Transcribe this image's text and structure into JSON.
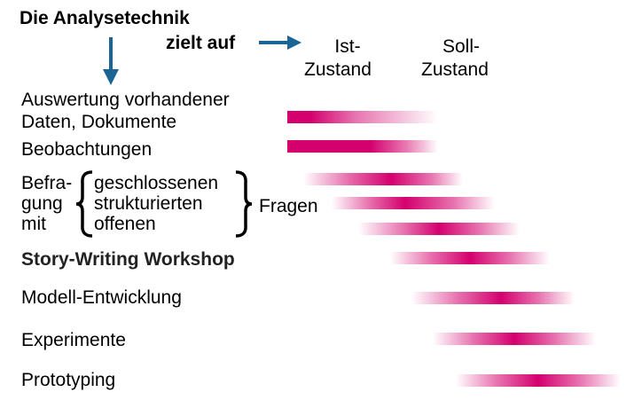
{
  "header": {
    "title": "Die Analysetechnik",
    "aims_label": "zielt auf",
    "ist_line1": "Ist-",
    "ist_line2": "Zustand",
    "soll_line1": "Soll-",
    "soll_line2": "Zustand"
  },
  "techniques": {
    "auswertung_line1": "Auswertung vorhandener",
    "auswertung_line2": "Daten, Dokumente",
    "beobachtungen": "Beobachtungen",
    "befragung_1": "Befra-",
    "befragung_2": "gung",
    "befragung_3": "mit",
    "geschlossenen": "geschlossenen",
    "strukturierten": "strukturierten",
    "offenen": "offenen",
    "fragen": "Fragen",
    "story_writing": "Story-Writing Workshop",
    "modell": "Modell-Entwicklung",
    "experimente": "Experimente",
    "prototyping": "Prototyping"
  },
  "colors": {
    "bar": "#d4006e",
    "arrow": "#1a6496"
  },
  "bars": [
    {
      "name": "auswertung",
      "peak": 0.0
    },
    {
      "name": "beobachtungen",
      "peak": 0.0
    },
    {
      "name": "geschlossenen",
      "peak": 0.55
    },
    {
      "name": "strukturierten",
      "peak": 0.45
    },
    {
      "name": "offenen",
      "peak": 0.5
    },
    {
      "name": "story-writing",
      "peak": 0.5
    },
    {
      "name": "modell",
      "peak": 0.55
    },
    {
      "name": "experimente",
      "peak": 0.5
    },
    {
      "name": "prototyping",
      "peak": 0.5
    }
  ]
}
